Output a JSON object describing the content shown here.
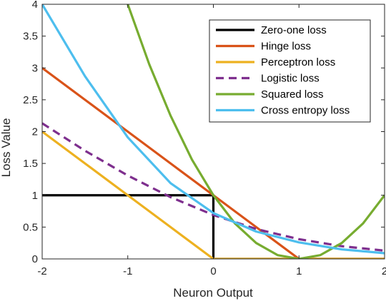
{
  "chart_data": {
    "type": "line",
    "title": "",
    "xlabel": "Neuron Output",
    "ylabel": "Loss Value",
    "xlim": [
      -2,
      2
    ],
    "ylim": [
      0,
      4
    ],
    "xticks": [
      -2,
      -1,
      0,
      1,
      2
    ],
    "xtick_labels": [
      "-2",
      "-1",
      "0",
      "1",
      "2"
    ],
    "yticks": [
      0,
      0.5,
      1,
      1.5,
      2,
      2.5,
      3,
      3.5,
      4
    ],
    "ytick_labels": [
      "0",
      "0.5",
      "1",
      "1.5",
      "2",
      "2.5",
      "3",
      "3.5",
      "4"
    ],
    "grid": false,
    "legend_position": "top-right",
    "series": [
      {
        "name": "Zero-one loss",
        "color": "#000000",
        "dash": "solid",
        "x": [
          -2,
          0,
          0,
          2
        ],
        "y": [
          1,
          1,
          0,
          0
        ]
      },
      {
        "name": "Hinge loss",
        "color": "#D95319",
        "dash": "solid",
        "x": [
          -2,
          -1.5,
          -1,
          -0.5,
          0,
          0.5,
          1,
          1.5,
          2
        ],
        "y": [
          3,
          2.5,
          2,
          1.5,
          1,
          0.5,
          0,
          0,
          0
        ]
      },
      {
        "name": "Perceptron loss",
        "color": "#EDB120",
        "dash": "solid",
        "x": [
          -2,
          -1.5,
          -1,
          -0.5,
          0,
          0.5,
          1,
          1.5,
          2
        ],
        "y": [
          2,
          1.5,
          1,
          0.5,
          0,
          0,
          0,
          0,
          0
        ]
      },
      {
        "name": "Logistic loss",
        "color": "#7E2F8E",
        "dash": "dashed",
        "x": [
          -2,
          -1.5,
          -1,
          -0.5,
          0,
          0.5,
          1,
          1.5,
          2
        ],
        "y": [
          2.13,
          1.7,
          1.31,
          0.97,
          0.69,
          0.47,
          0.31,
          0.2,
          0.13
        ]
      },
      {
        "name": "Squared loss",
        "color": "#77AC30",
        "dash": "solid",
        "x": [
          -1,
          -0.75,
          -0.5,
          -0.25,
          0,
          0.25,
          0.5,
          0.75,
          1,
          1.25,
          1.5,
          1.75,
          2
        ],
        "y": [
          4,
          3.06,
          2.25,
          1.56,
          1,
          0.56,
          0.25,
          0.06,
          0,
          0.06,
          0.25,
          0.56,
          1
        ]
      },
      {
        "name": "Cross entropy loss",
        "color": "#4DBEEE",
        "dash": "solid",
        "x": [
          -2,
          -1.5,
          -1,
          -0.5,
          0,
          0.5,
          1,
          1.5,
          2
        ],
        "y": [
          4.0,
          2.87,
          1.91,
          1.19,
          0.72,
          0.43,
          0.26,
          0.15,
          0.09
        ]
      }
    ]
  }
}
